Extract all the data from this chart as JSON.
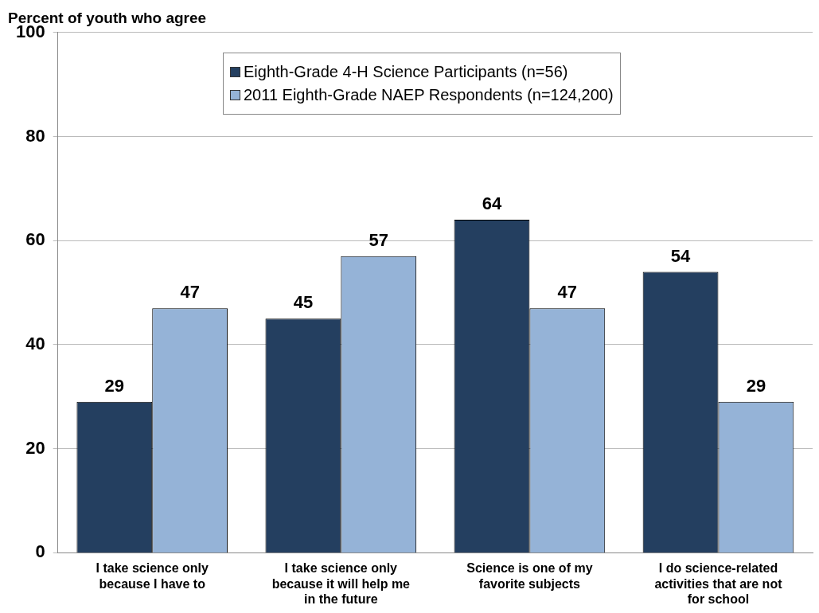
{
  "chart_data": {
    "type": "bar",
    "ylabel": "Percent of youth who agree",
    "categories": [
      "I take science only because I have to",
      "I take science only because it will help me in the future",
      "Science is one of my favorite subjects",
      "I do science-related activities that are not for school"
    ],
    "series": [
      {
        "name": "Eighth-Grade 4-H Science Participants (n=56)",
        "color": "#243f60",
        "values": [
          29,
          45,
          64,
          54
        ]
      },
      {
        "name": "2011 Eighth-Grade NAEP Respondents (n=124,200)",
        "color": "#95b3d7",
        "values": [
          47,
          57,
          47,
          29
        ]
      }
    ],
    "ylim": [
      0,
      100
    ],
    "yticks": [
      0,
      20,
      40,
      60,
      80,
      100
    ],
    "grid": "y",
    "legend": "top",
    "data_labels": true
  }
}
